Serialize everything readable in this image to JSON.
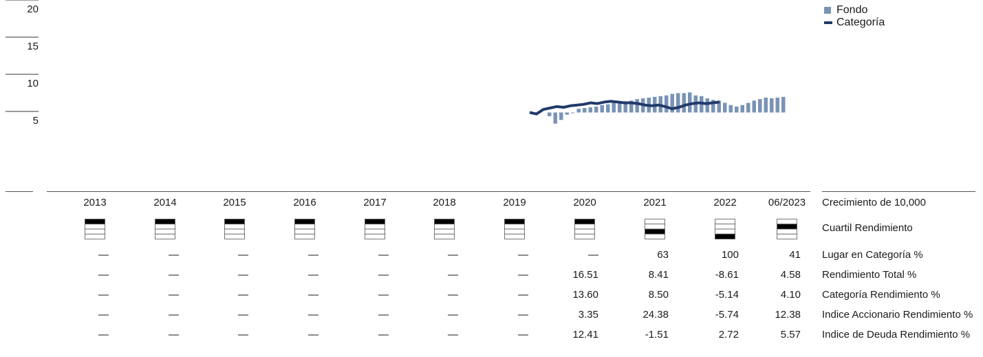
{
  "legend": {
    "fund": "Fondo",
    "category": "Categoría"
  },
  "chart_data": {
    "type": "bar",
    "ylim": [
      0,
      20
    ],
    "yticks": [
      "20",
      "15",
      "10",
      "5"
    ],
    "series": [
      {
        "name": "Fondo",
        "type": "bar",
        "values": [
          -0.5,
          -1.5,
          -1.0,
          -0.3,
          0,
          0.5,
          0.6,
          0.7,
          0.8,
          1.0,
          1.1,
          1.3,
          1.4,
          1.5,
          1.6,
          1.8,
          1.9,
          2.0,
          2.1,
          2.2,
          2.3,
          2.5,
          2.6,
          2.6,
          2.7,
          2.3,
          2.2,
          1.9,
          1.7,
          1.6,
          1.3,
          1.0,
          0.8,
          1.0,
          1.3,
          1.6,
          1.8,
          2.0,
          1.9,
          2.0,
          2.1
        ]
      },
      {
        "name": "Categoría",
        "type": "line",
        "values": [
          0,
          -0.2,
          0.4,
          0.6,
          0.8,
          0.7,
          0.9,
          1.0,
          1.1,
          1.3,
          1.2,
          1.4,
          1.5,
          1.4,
          1.3,
          1.3,
          1.2,
          1.0,
          0.9,
          1.0,
          0.8,
          0.5,
          0.7,
          1.0,
          1.2,
          1.3,
          1.2,
          1.3,
          1.4
        ]
      }
    ],
    "baseline": 5.6
  },
  "table": {
    "years": [
      "2013",
      "2014",
      "2015",
      "2016",
      "2017",
      "2018",
      "2019",
      "2020",
      "2021",
      "2022",
      "06/2023"
    ],
    "quartiles": [
      1,
      1,
      1,
      1,
      1,
      1,
      1,
      1,
      3,
      4,
      2
    ],
    "rows": [
      {
        "label": "Lugar en Categoría %",
        "values": [
          "—",
          "—",
          "—",
          "—",
          "—",
          "—",
          "—",
          "—",
          "63",
          "100",
          "41"
        ]
      },
      {
        "label": "Rendimiento Total %",
        "values": [
          "—",
          "—",
          "—",
          "—",
          "—",
          "—",
          "—",
          "16.51",
          "8.41",
          "-8.61",
          "4.58"
        ]
      },
      {
        "label": "Categoría Rendimiento %",
        "values": [
          "—",
          "—",
          "—",
          "—",
          "—",
          "—",
          "—",
          "13.60",
          "8.50",
          "-5.14",
          "4.10"
        ]
      },
      {
        "label": "Indice Accionario Rendimiento %",
        "values": [
          "—",
          "—",
          "—",
          "—",
          "—",
          "—",
          "—",
          "3.35",
          "24.38",
          "-5.74",
          "12.38"
        ]
      },
      {
        "label": "Indice de Deuda Rendimiento %",
        "values": [
          "—",
          "—",
          "—",
          "—",
          "—",
          "—",
          "—",
          "12.41",
          "-1.51",
          "2.72",
          "5.57"
        ]
      }
    ],
    "growth_label": "Crecimiento de 10,000",
    "quartile_label": "Cuartil Rendimiento"
  },
  "colors": {
    "bar": "#7a93b5",
    "line": "#223a6b",
    "quartile_fill": "#000000"
  }
}
